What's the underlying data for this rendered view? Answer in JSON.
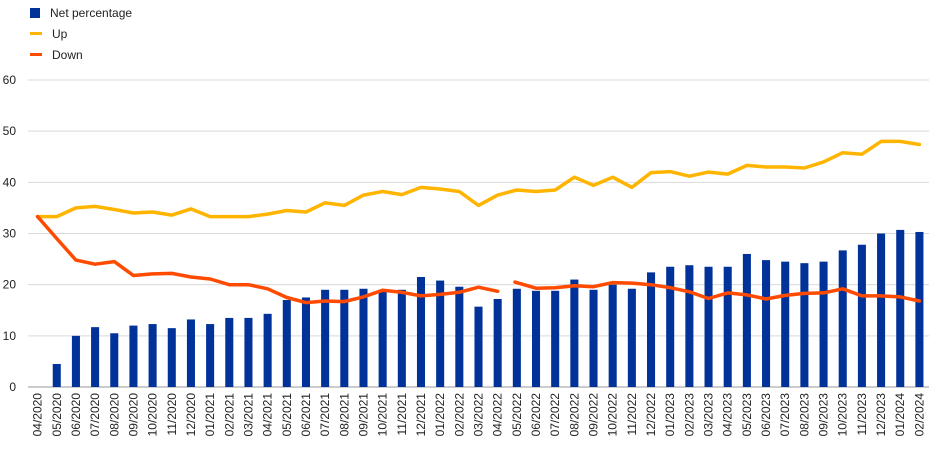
{
  "chart_data": {
    "type": "bar",
    "categories": [
      "04/2020",
      "05/2020",
      "06/2020",
      "07/2020",
      "08/2020",
      "09/2020",
      "10/2020",
      "11/2020",
      "12/2020",
      "01/2021",
      "02/2021",
      "03/2021",
      "04/2021",
      "05/2021",
      "06/2021",
      "07/2021",
      "08/2021",
      "09/2021",
      "10/2021",
      "11/2021",
      "12/2021",
      "01/2022",
      "02/2022",
      "03/2022",
      "04/2022",
      "05/2022",
      "06/2022",
      "07/2022",
      "08/2022",
      "09/2022",
      "10/2022",
      "11/2022",
      "12/2022",
      "01/2023",
      "02/2023",
      "03/2023",
      "04/2023",
      "05/2023",
      "06/2023",
      "07/2023",
      "08/2023",
      "09/2023",
      "10/2023",
      "11/2023",
      "12/2023",
      "01/2024",
      "02/2024"
    ],
    "ylim": [
      0,
      60
    ],
    "yticks": [
      "0",
      "10",
      "20",
      "30",
      "40",
      "50",
      "60"
    ],
    "legend_position": "top-left",
    "grid": true,
    "series": [
      {
        "name": "Net percentage",
        "kind": "bar",
        "color": "#003299",
        "values": [
          0,
          4.5,
          10,
          11.7,
          10.5,
          12,
          12.3,
          11.5,
          13.2,
          12.3,
          13.5,
          13.5,
          14.3,
          17,
          17.5,
          19,
          19,
          19.2,
          19,
          19,
          21.5,
          20.8,
          19.6,
          15.7,
          17.2,
          19.2,
          18.8,
          18.8,
          21,
          19,
          20,
          19.2,
          22.4,
          23.5,
          23.8,
          23.5,
          23.5,
          26,
          24.8,
          24.5,
          24.2,
          24.5,
          26.7,
          27.8,
          30,
          30.7,
          30.3
        ]
      },
      {
        "name": "Up",
        "kind": "line",
        "color": "#FFB400",
        "values": [
          33.3,
          33.3,
          35,
          35.3,
          34.7,
          34,
          34.2,
          33.6,
          34.8,
          33.3,
          33.3,
          33.3,
          33.8,
          34.5,
          34.2,
          36,
          35.5,
          37.5,
          38.2,
          37.6,
          39,
          38.7,
          38.2,
          35.5,
          37.5,
          38.5,
          38.2,
          38.5,
          41,
          39.4,
          41,
          39,
          41.9,
          42.1,
          41.2,
          42,
          41.6,
          43.3,
          43,
          43,
          42.8,
          44,
          45.8,
          45.5,
          48,
          48,
          47.4
        ]
      },
      {
        "name": "Down",
        "kind": "line",
        "color": "#FF4B00",
        "values": [
          33.3,
          29,
          24.8,
          24,
          24.5,
          21.8,
          22.1,
          22.2,
          21.5,
          21.1,
          20,
          20,
          19.2,
          17.5,
          16.5,
          16.8,
          16.7,
          17.6,
          18.9,
          18.5,
          17.8,
          18.1,
          18.5,
          19.5,
          18.7,
          null,
          19.3,
          19.4,
          19.8,
          19.6,
          20.4,
          20.3,
          20,
          19.4,
          18.6,
          17.3,
          18.4,
          18,
          17.2,
          17.9,
          18.3,
          18.4,
          19.2,
          17.8,
          17.8,
          17.6,
          16.8
        ],
        "gap_after_index": 24,
        "resume_value": 20.5
      }
    ]
  }
}
